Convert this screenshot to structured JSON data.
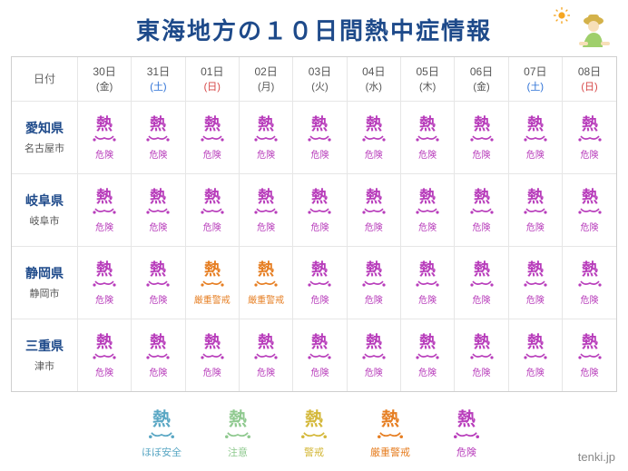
{
  "title": "東海地方の１０日間熱中症情報",
  "credit": "tenki.jp",
  "colors": {
    "danger": "#b83dbb",
    "severe": "#e67e22",
    "warning": "#d4b83a",
    "caution": "#8fc98f",
    "safe": "#5aa7c4",
    "weekday": "#555555",
    "saturday": "#2a6fd6",
    "sunday": "#d64545"
  },
  "labels": {
    "date_header": "日付",
    "danger": "危険",
    "severe": "厳重警戒",
    "warning": "警戒",
    "caution": "注意",
    "safe": "ほぼ安全"
  },
  "legend_order": [
    "safe",
    "caution",
    "warning",
    "severe",
    "danger"
  ],
  "dates": [
    {
      "day": "30日",
      "wday": "(金)",
      "wtype": "weekday"
    },
    {
      "day": "31日",
      "wday": "(土)",
      "wtype": "saturday"
    },
    {
      "day": "01日",
      "wday": "(日)",
      "wtype": "sunday"
    },
    {
      "day": "02日",
      "wday": "(月)",
      "wtype": "weekday"
    },
    {
      "day": "03日",
      "wday": "(火)",
      "wtype": "weekday"
    },
    {
      "day": "04日",
      "wday": "(水)",
      "wtype": "weekday"
    },
    {
      "day": "05日",
      "wday": "(木)",
      "wtype": "weekday"
    },
    {
      "day": "06日",
      "wday": "(金)",
      "wtype": "weekday"
    },
    {
      "day": "07日",
      "wday": "(土)",
      "wtype": "saturday"
    },
    {
      "day": "08日",
      "wday": "(日)",
      "wtype": "sunday"
    }
  ],
  "areas": [
    {
      "pref": "愛知県",
      "city": "名古屋市",
      "levels": [
        "danger",
        "danger",
        "danger",
        "danger",
        "danger",
        "danger",
        "danger",
        "danger",
        "danger",
        "danger"
      ]
    },
    {
      "pref": "岐阜県",
      "city": "岐阜市",
      "levels": [
        "danger",
        "danger",
        "danger",
        "danger",
        "danger",
        "danger",
        "danger",
        "danger",
        "danger",
        "danger"
      ]
    },
    {
      "pref": "静岡県",
      "city": "静岡市",
      "levels": [
        "danger",
        "danger",
        "severe",
        "severe",
        "danger",
        "danger",
        "danger",
        "danger",
        "danger",
        "danger"
      ]
    },
    {
      "pref": "三重県",
      "city": "津市",
      "levels": [
        "danger",
        "danger",
        "danger",
        "danger",
        "danger",
        "danger",
        "danger",
        "danger",
        "danger",
        "danger"
      ]
    }
  ]
}
